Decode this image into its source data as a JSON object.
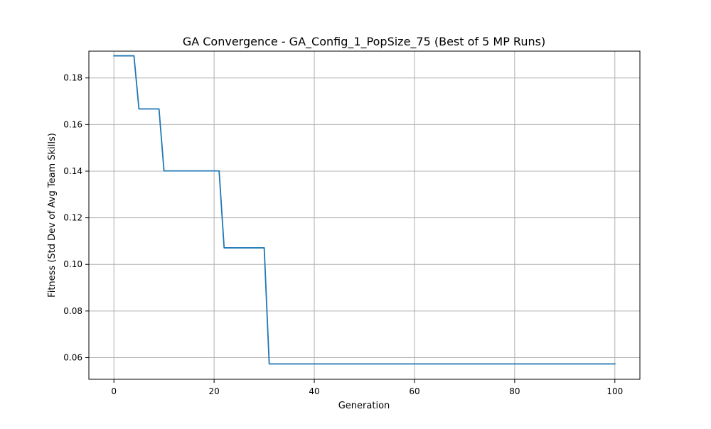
{
  "chart_data": {
    "type": "line",
    "title": "GA Convergence - GA_Config_1_PopSize_75 (Best of 5 MP Runs)",
    "xlabel": "Generation",
    "ylabel": "Fitness (Std Dev of Avg Team Skills)",
    "xlim": [
      -5,
      105
    ],
    "ylim": [
      0.0507,
      0.1915
    ],
    "xticks": [
      0,
      20,
      40,
      60,
      80,
      100
    ],
    "yticks": [
      0.06,
      0.08,
      0.1,
      0.12,
      0.14,
      0.16,
      0.18
    ],
    "xtick_labels": [
      "0",
      "20",
      "40",
      "60",
      "80",
      "100"
    ],
    "ytick_labels": [
      "0.06",
      "0.08",
      "0.10",
      "0.12",
      "0.14",
      "0.16",
      "0.18"
    ],
    "grid": true,
    "line_color": "#1f77b4",
    "series": [
      {
        "points": [
          [
            0,
            0.1895
          ],
          [
            4,
            0.1895
          ],
          [
            5,
            0.1667
          ],
          [
            9,
            0.1667
          ],
          [
            10,
            0.1401
          ],
          [
            21,
            0.1401
          ],
          [
            22,
            0.1071
          ],
          [
            30,
            0.1071
          ],
          [
            31,
            0.0573
          ],
          [
            100,
            0.0573
          ]
        ]
      }
    ]
  }
}
